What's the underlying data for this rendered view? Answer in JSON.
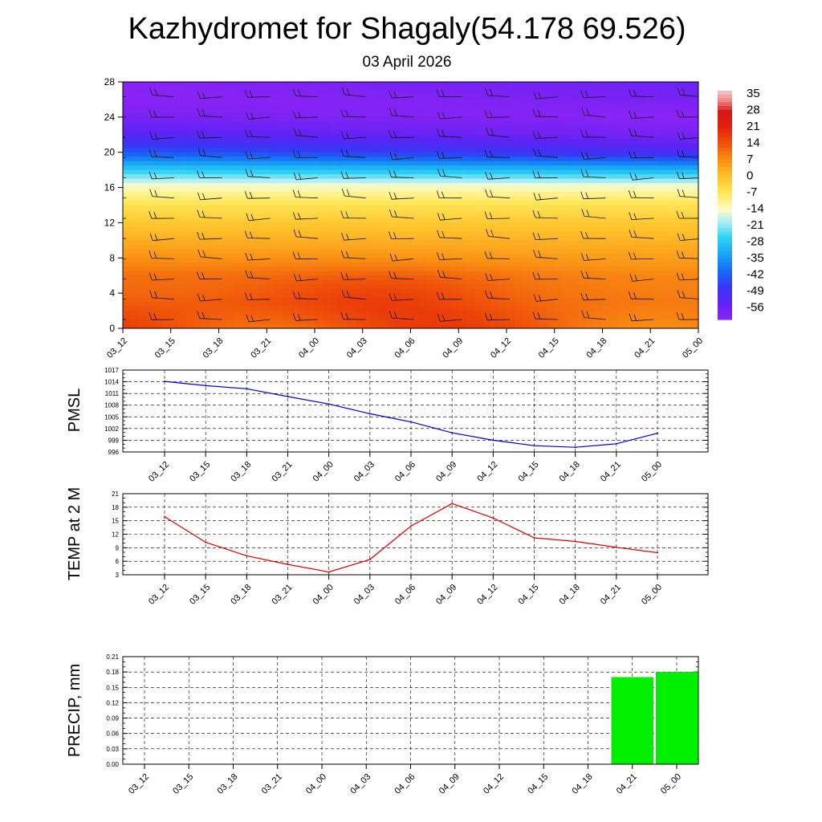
{
  "title": "Kazhydromet for Shagaly(54.178 69.526)",
  "subtitle": "03 April 2026",
  "times": [
    "03_12",
    "03_15",
    "03_18",
    "03_21",
    "04_00",
    "04_03",
    "04_06",
    "04_09",
    "04_12",
    "04_15",
    "04_18",
    "04_21",
    "05_00"
  ],
  "colors": {
    "pmsl_line": "#0000cc",
    "temp_line": "#dd0000",
    "precip_bar": "#00ee00",
    "grid": "#000000"
  },
  "chart_data": [
    {
      "type": "heatmap",
      "name": "temperature-wind-cross-section",
      "x": [
        "03_12",
        "03_15",
        "03_18",
        "03_21",
        "04_00",
        "04_03",
        "04_06",
        "04_09",
        "04_12",
        "04_15",
        "04_18",
        "04_21",
        "05_00"
      ],
      "ylim": [
        0,
        28
      ],
      "yticks": [
        "0",
        "4",
        "8",
        "12",
        "16",
        "20",
        "24",
        "28"
      ],
      "colorbar_labels": [
        "35",
        "28",
        "21",
        "14",
        "7",
        "0",
        "-7",
        "-14",
        "-21",
        "-28",
        "-35",
        "-42",
        "-49",
        "-56"
      ],
      "colorbar_range": [
        -60,
        38
      ],
      "levels_temp_start": [
        16,
        15,
        13,
        12,
        8,
        4,
        0,
        -5,
        -12,
        -26,
        -42,
        -52,
        -57,
        -60,
        -59,
        -57
      ],
      "levels_temp_end": [
        12,
        11,
        10,
        9,
        6,
        3,
        0,
        -5,
        -12,
        -30,
        -50,
        -57,
        -60,
        -57,
        -55,
        -55
      ],
      "warm_core": {
        "center_time_index": 5.5,
        "center_level": 3.5,
        "peak_add": 6
      }
    },
    {
      "type": "line",
      "name": "pmsl",
      "ylabel": "PMSL",
      "ylim": [
        996,
        1017
      ],
      "yticks": [
        "996",
        "999",
        "1002",
        "1005",
        "1008",
        "1011",
        "1014",
        "1017"
      ],
      "categories": [
        "03_12",
        "03_15",
        "03_18",
        "03_21",
        "04_00",
        "04_03",
        "04_06",
        "04_09",
        "04_12",
        "04_15",
        "04_18",
        "04_21",
        "05_00"
      ],
      "values": [
        1014.1,
        1013.0,
        1012.2,
        1010.2,
        1008.3,
        1005.8,
        1003.7,
        1000.9,
        999.0,
        997.6,
        997.2,
        998.1,
        1000.8
      ]
    },
    {
      "type": "line",
      "name": "temp-2m",
      "ylabel": "TEMP at 2 M",
      "ylim": [
        3,
        21
      ],
      "yticks": [
        "3",
        "6",
        "9",
        "12",
        "15",
        "18",
        "21"
      ],
      "categories": [
        "03_12",
        "03_15",
        "03_18",
        "03_21",
        "04_00",
        "04_03",
        "04_06",
        "04_09",
        "04_12",
        "04_15",
        "04_18",
        "04_21",
        "05_00"
      ],
      "values": [
        15.9,
        10.2,
        7.2,
        5.3,
        3.6,
        6.4,
        13.8,
        18.8,
        15.6,
        11.2,
        10.4,
        9.1,
        7.9
      ]
    },
    {
      "type": "bar",
      "name": "precip",
      "ylabel": "PRECIP, mm",
      "ylim": [
        0,
        0.21
      ],
      "yticks": [
        "0.00",
        "0.03",
        "0.06",
        "0.09",
        "0.12",
        "0.15",
        "0.18",
        "0.21"
      ],
      "categories": [
        "03_12",
        "03_15",
        "03_18",
        "03_21",
        "04_00",
        "04_03",
        "04_06",
        "04_09",
        "04_12",
        "04_15",
        "04_18",
        "04_21",
        "05_00"
      ],
      "values": [
        0,
        0,
        0,
        0,
        0,
        0,
        0,
        0,
        0,
        0,
        0,
        0.17,
        0.18
      ]
    }
  ]
}
